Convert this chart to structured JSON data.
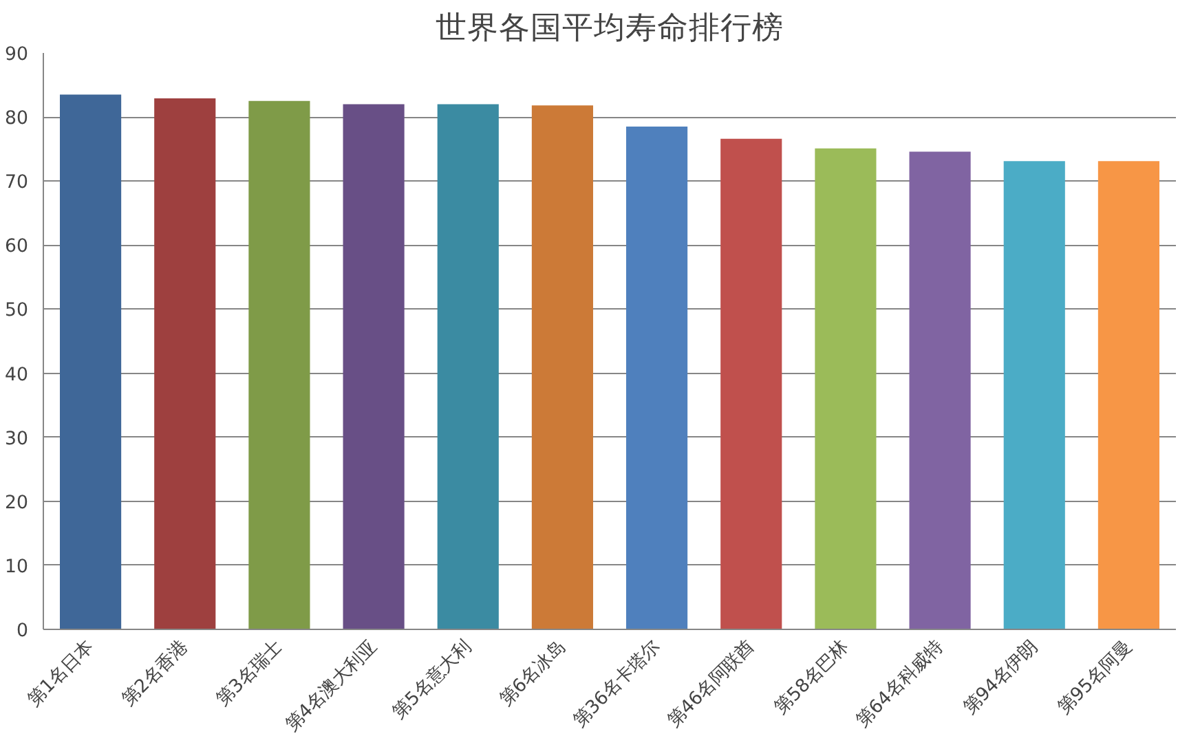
{
  "chart_data": {
    "type": "bar",
    "title": "世界各国平均寿命排行榜",
    "categories": [
      "第1名日本",
      "第2名香港",
      "第3名瑞士",
      "第4名澳大利亚",
      "第5名意大利",
      "第6名冰岛",
      "第36名卡塔尔",
      "第46名阿联酋",
      "第58名巴林",
      "第64名科威特",
      "第94名伊朗",
      "第95名阿曼"
    ],
    "values": [
      83.5,
      82.9,
      82.5,
      82.0,
      82.0,
      81.8,
      78.5,
      76.6,
      75.1,
      74.6,
      73.1,
      73.1
    ],
    "colors": [
      "#3f6798",
      "#9e403f",
      "#7f9b48",
      "#684f86",
      "#3b8ba2",
      "#cc7a37",
      "#4f80bd",
      "#c0504d",
      "#9bbb59",
      "#8064a2",
      "#4bacc6",
      "#f79646"
    ],
    "ylim": [
      0,
      90
    ],
    "yticks": [
      0,
      10,
      20,
      30,
      40,
      50,
      60,
      70,
      80,
      90
    ],
    "grid": "y"
  }
}
